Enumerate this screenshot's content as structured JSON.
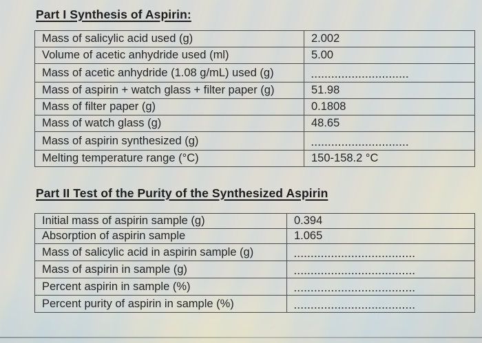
{
  "part1": {
    "title": "Part I Synthesis of Aspirin:",
    "rows": [
      {
        "label": "Mass of salicylic acid used (g)",
        "value": "2.002",
        "dotted": false
      },
      {
        "label": "Volume of acetic anhydride used (ml)",
        "value": "5.00",
        "dotted": false
      },
      {
        "label": "Mass of acetic anhydride (1.08 g/mL) used (g)",
        "value": ".............................",
        "dotted": true
      },
      {
        "label": "Mass of aspirin + watch glass + filter paper (g)",
        "value": "51.98",
        "dotted": false
      },
      {
        "label": "Mass of filter paper (g)",
        "value": "0.1808",
        "dotted": false
      },
      {
        "label": "Mass of watch glass (g)",
        "value": "48.65",
        "dotted": false
      },
      {
        "label": "Mass of aspirin synthesized (g)",
        "value": ".............................",
        "dotted": true
      },
      {
        "label": "Melting temperature range (°C)",
        "value": "150-158.2 °C",
        "dotted": false
      }
    ]
  },
  "part2": {
    "title": "Part II Test of the Purity of the Synthesized Aspirin",
    "rows": [
      {
        "label": "Initial mass of aspirin sample (g)",
        "value": "0.394",
        "dotted": false
      },
      {
        "label": "Absorption of aspirin sample",
        "value": "1.065",
        "dotted": false
      },
      {
        "label": "Mass of salicylic acid in aspirin sample (g)",
        "value": "....................................",
        "dotted": true
      },
      {
        "label": "Mass of aspirin in sample (g)",
        "value": "....................................",
        "dotted": true
      },
      {
        "label": "Percent aspirin in sample (%)",
        "value": "....................................",
        "dotted": true
      },
      {
        "label": "Percent purity of aspirin in sample (%)",
        "value": "....................................",
        "dotted": true
      }
    ]
  }
}
